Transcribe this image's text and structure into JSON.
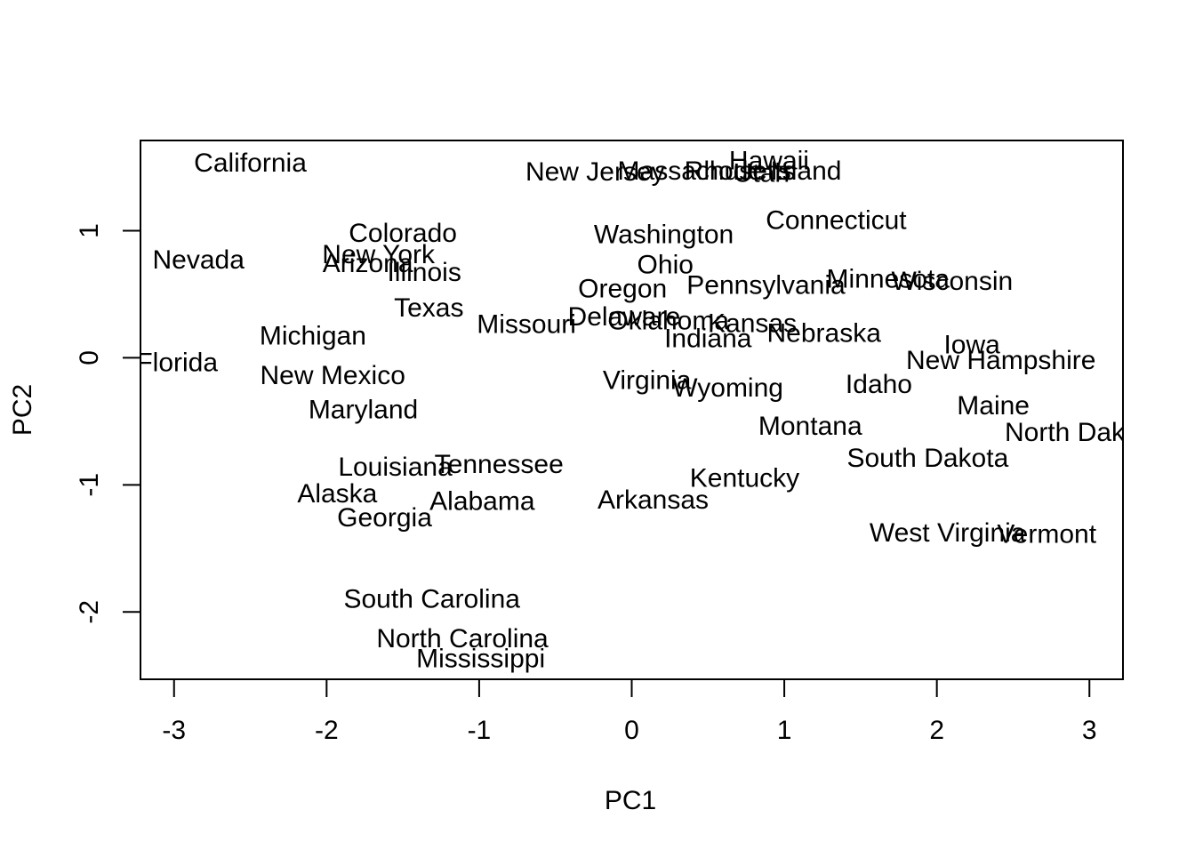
{
  "chart_data": {
    "type": "scatter",
    "title": "",
    "xlabel": "PC1",
    "ylabel": "PC2",
    "xlim": [
      -3.22,
      3.22
    ],
    "ylim": [
      -2.53,
      1.71
    ],
    "x_ticks": [
      -3,
      -2,
      -1,
      0,
      1,
      2,
      3
    ],
    "x_tick_labels": [
      "-3",
      "-2",
      "-1",
      "0",
      "1",
      "2",
      "3"
    ],
    "y_ticks": [
      -2,
      -1,
      0,
      1
    ],
    "y_tick_labels": [
      "-2",
      "-1",
      "0",
      "1"
    ],
    "grid": false,
    "legend": "none",
    "point_style": "text-labels",
    "points": [
      {
        "label": "Alabama",
        "x": -0.98,
        "y": -1.13
      },
      {
        "label": "Alaska",
        "x": -1.93,
        "y": -1.07
      },
      {
        "label": "Arizona",
        "x": -1.73,
        "y": 0.74
      },
      {
        "label": "Arkansas",
        "x": 0.14,
        "y": -1.12
      },
      {
        "label": "California",
        "x": -2.5,
        "y": 1.53
      },
      {
        "label": "Colorado",
        "x": -1.5,
        "y": 0.98
      },
      {
        "label": "Connecticut",
        "x": 1.34,
        "y": 1.08
      },
      {
        "label": "Delaware",
        "x": -0.05,
        "y": 0.32
      },
      {
        "label": "Florida",
        "x": -2.98,
        "y": -0.04
      },
      {
        "label": "Georgia",
        "x": -1.62,
        "y": -1.26
      },
      {
        "label": "Hawaii",
        "x": 0.9,
        "y": 1.55
      },
      {
        "label": "Idaho",
        "x": 1.62,
        "y": -0.21
      },
      {
        "label": "Illinois",
        "x": -1.36,
        "y": 0.67
      },
      {
        "label": "Indiana",
        "x": 0.5,
        "y": 0.15
      },
      {
        "label": "Iowa",
        "x": 2.23,
        "y": 0.1
      },
      {
        "label": "Kansas",
        "x": 0.79,
        "y": 0.27
      },
      {
        "label": "Kentucky",
        "x": 0.74,
        "y": -0.95
      },
      {
        "label": "Louisiana",
        "x": -1.55,
        "y": -0.86
      },
      {
        "label": "Maine",
        "x": 2.37,
        "y": -0.38
      },
      {
        "label": "Maryland",
        "x": -1.76,
        "y": -0.41
      },
      {
        "label": "Massachusetts",
        "x": 0.49,
        "y": 1.47
      },
      {
        "label": "Michigan",
        "x": -2.09,
        "y": 0.17
      },
      {
        "label": "Minnesota",
        "x": 1.68,
        "y": 0.62
      },
      {
        "label": "Mississippi",
        "x": -0.99,
        "y": -2.37
      },
      {
        "label": "Missouri",
        "x": -0.69,
        "y": 0.26
      },
      {
        "label": "Montana",
        "x": 1.17,
        "y": -0.54
      },
      {
        "label": "Nebraska",
        "x": 1.26,
        "y": 0.19
      },
      {
        "label": "Nevada",
        "x": -2.84,
        "y": 0.77
      },
      {
        "label": "New Hampshire",
        "x": 2.42,
        "y": -0.02
      },
      {
        "label": "New Jersey",
        "x": -0.24,
        "y": 1.46
      },
      {
        "label": "New Mexico",
        "x": -1.96,
        "y": -0.14
      },
      {
        "label": "New York",
        "x": -1.66,
        "y": 0.81
      },
      {
        "label": "North Carolina",
        "x": -1.11,
        "y": -2.21
      },
      {
        "label": "North Dakota",
        "x": 2.96,
        "y": -0.59
      },
      {
        "label": "Ohio",
        "x": 0.22,
        "y": 0.73
      },
      {
        "label": "Oklahoma",
        "x": 0.24,
        "y": 0.29
      },
      {
        "label": "Oregon",
        "x": -0.06,
        "y": 0.54
      },
      {
        "label": "Pennsylvania",
        "x": 0.88,
        "y": 0.57
      },
      {
        "label": "Rhode Island",
        "x": 0.86,
        "y": 1.47
      },
      {
        "label": "South Carolina",
        "x": -1.31,
        "y": -1.9
      },
      {
        "label": "South Dakota",
        "x": 1.94,
        "y": -0.79
      },
      {
        "label": "Tennessee",
        "x": -0.87,
        "y": -0.84
      },
      {
        "label": "Texas",
        "x": -1.33,
        "y": 0.39
      },
      {
        "label": "Utah",
        "x": 0.85,
        "y": 1.45
      },
      {
        "label": "Vermont",
        "x": 2.72,
        "y": -1.39
      },
      {
        "label": "Virginia",
        "x": 0.1,
        "y": -0.18
      },
      {
        "label": "Washington",
        "x": 0.21,
        "y": 0.97
      },
      {
        "label": "West Virginia",
        "x": 2.07,
        "y": -1.38
      },
      {
        "label": "Wisconsin",
        "x": 2.1,
        "y": 0.6
      },
      {
        "label": "Wyoming",
        "x": 0.63,
        "y": -0.24
      }
    ]
  }
}
